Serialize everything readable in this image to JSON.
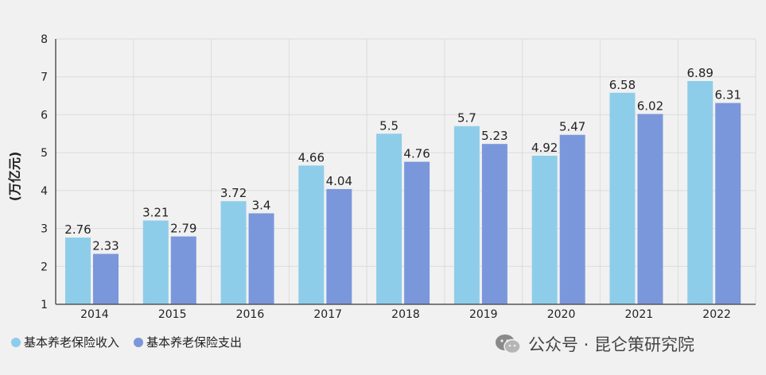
{
  "chart_data": {
    "type": "bar",
    "categories": [
      "2014",
      "2015",
      "2016",
      "2017",
      "2018",
      "2019",
      "2020",
      "2021",
      "2022"
    ],
    "series": [
      {
        "name": "基本养老保险收入",
        "values": [
          2.76,
          3.21,
          3.72,
          4.66,
          5.5,
          5.7,
          4.92,
          6.58,
          6.89
        ],
        "labels": [
          "2.76",
          "3.21",
          "3.72",
          "4.66",
          "5.5",
          "5.7",
          "4.92",
          "6.58",
          "6.89"
        ]
      },
      {
        "name": "基本养老保险支出",
        "values": [
          2.33,
          2.79,
          3.4,
          4.04,
          4.76,
          5.23,
          5.47,
          6.02,
          6.31
        ],
        "labels": [
          "2.33",
          "2.79",
          "3.4",
          "4.04",
          "4.76",
          "5.23",
          "5.47",
          "6.02",
          "6.31"
        ]
      }
    ],
    "ylabel": "(万亿元)",
    "ylim": [
      1,
      8
    ],
    "yticks": [
      "1",
      "2",
      "3",
      "4",
      "5",
      "6",
      "7",
      "8"
    ],
    "grid": true,
    "legend_position": "bottom-left",
    "colors": {
      "income": "#8ecde9",
      "expense": "#7b97db"
    }
  },
  "watermark": {
    "text": "公众号 · 昆仑策研究院",
    "icon": "wechat-icon"
  }
}
